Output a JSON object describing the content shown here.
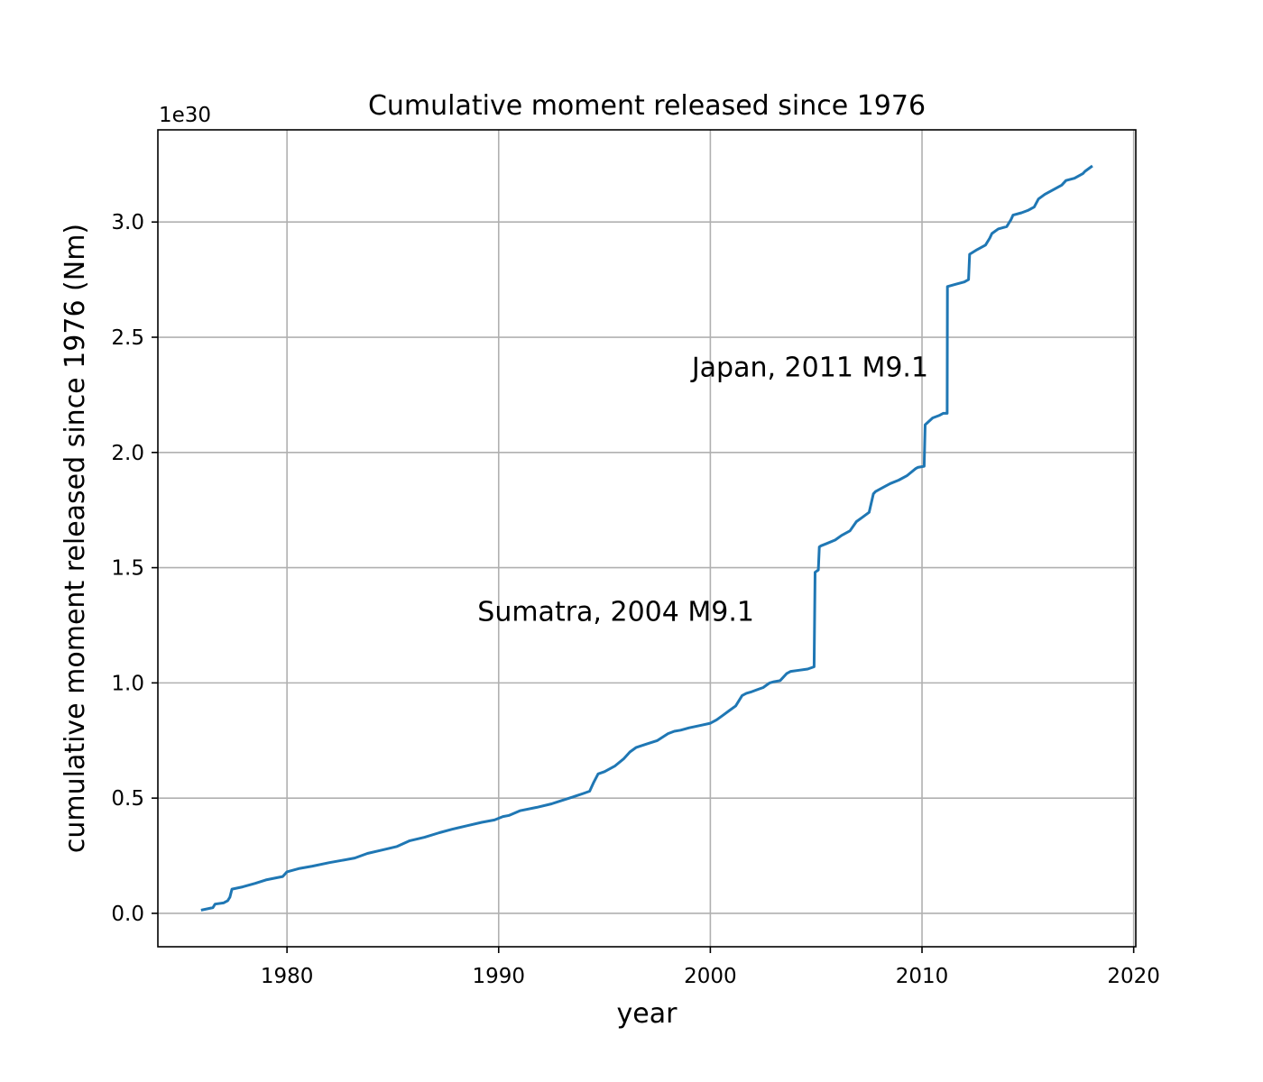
{
  "chart_data": {
    "type": "line",
    "title": "Cumulative moment released since 1976",
    "xlabel": "year",
    "ylabel": "cumulative moment released since 1976 (Nm)",
    "y_scale_label": "1e30",
    "y_scale_factor": 1e+30,
    "xlim": [
      1973.9,
      2020.1
    ],
    "ylim": [
      -0.145,
      3.4
    ],
    "xticks": [
      1980,
      1990,
      2000,
      2010,
      2020
    ],
    "yticks": [
      0.0,
      0.5,
      1.0,
      1.5,
      2.0,
      2.5,
      3.0
    ],
    "xtick_labels": [
      "1980",
      "1990",
      "2000",
      "2010",
      "2020"
    ],
    "ytick_labels": [
      "0.0",
      "0.5",
      "1.0",
      "1.5",
      "2.0",
      "2.5",
      "3.0"
    ],
    "grid": true,
    "legend": "none",
    "colors": {
      "series": "#1f77b4",
      "grid": "#b0b0b0",
      "frame": "#000000"
    },
    "series": [
      {
        "color": "#1f77b4",
        "x": [
          1976.0,
          1976.5,
          1976.6,
          1977.0,
          1977.2,
          1977.3,
          1977.4,
          1977.9,
          1978.5,
          1979.0,
          1979.8,
          1980.0,
          1980.6,
          1981.2,
          1982.0,
          1982.6,
          1983.2,
          1983.8,
          1984.5,
          1985.2,
          1985.8,
          1986.5,
          1987.2,
          1987.8,
          1988.5,
          1989.2,
          1989.8,
          1990.2,
          1990.5,
          1991.0,
          1991.8,
          1992.5,
          1993.0,
          1993.5,
          1994.0,
          1994.3,
          1994.5,
          1994.7,
          1995.0,
          1995.5,
          1995.9,
          1996.2,
          1996.5,
          1997.0,
          1997.5,
          1998.0,
          1998.3,
          1998.6,
          1999.0,
          1999.5,
          2000.0,
          2000.3,
          2000.6,
          2000.9,
          2001.2,
          2001.5,
          2001.7,
          2001.9,
          2002.2,
          2002.5,
          2002.8,
          2003.0,
          2003.3,
          2003.6,
          2003.8,
          2004.2,
          2004.6,
          2004.9,
          2004.95,
          2005.1,
          2005.15,
          2005.23,
          2005.5,
          2005.9,
          2006.2,
          2006.6,
          2006.9,
          2007.2,
          2007.5,
          2007.7,
          2007.8,
          2008.2,
          2008.5,
          2008.9,
          2009.3,
          2009.7,
          2009.8,
          2010.1,
          2010.15,
          2010.5,
          2010.8,
          2011.0,
          2011.05,
          2011.19,
          2011.2,
          2011.6,
          2012.0,
          2012.2,
          2012.25,
          2012.6,
          2013.0,
          2013.2,
          2013.3,
          2013.6,
          2014.0,
          2014.2,
          2014.3,
          2014.7,
          2015.0,
          2015.3,
          2015.5,
          2015.8,
          2016.2,
          2016.6,
          2016.8,
          2017.2,
          2017.6,
          2017.7,
          2018.0
        ],
        "y": [
          0.015,
          0.025,
          0.04,
          0.045,
          0.055,
          0.07,
          0.105,
          0.115,
          0.13,
          0.145,
          0.16,
          0.18,
          0.195,
          0.205,
          0.22,
          0.23,
          0.24,
          0.26,
          0.275,
          0.29,
          0.315,
          0.33,
          0.35,
          0.365,
          0.38,
          0.395,
          0.405,
          0.42,
          0.425,
          0.445,
          0.46,
          0.475,
          0.49,
          0.505,
          0.52,
          0.53,
          0.57,
          0.605,
          0.615,
          0.64,
          0.67,
          0.7,
          0.72,
          0.735,
          0.75,
          0.78,
          0.79,
          0.795,
          0.805,
          0.815,
          0.825,
          0.84,
          0.86,
          0.88,
          0.9,
          0.945,
          0.955,
          0.96,
          0.97,
          0.98,
          1.0,
          1.005,
          1.01,
          1.04,
          1.05,
          1.055,
          1.06,
          1.07,
          1.48,
          1.49,
          1.59,
          1.595,
          1.605,
          1.62,
          1.64,
          1.66,
          1.7,
          1.72,
          1.74,
          1.82,
          1.83,
          1.85,
          1.865,
          1.88,
          1.9,
          1.93,
          1.935,
          1.94,
          2.12,
          2.15,
          2.16,
          2.17,
          2.17,
          2.17,
          2.72,
          2.73,
          2.74,
          2.75,
          2.86,
          2.88,
          2.9,
          2.93,
          2.95,
          2.97,
          2.98,
          3.01,
          3.03,
          3.04,
          3.05,
          3.065,
          3.1,
          3.12,
          3.14,
          3.16,
          3.18,
          3.19,
          3.21,
          3.22,
          3.24
        ]
      }
    ],
    "annotations": [
      {
        "text": "Sumatra, 2004 M9.1",
        "x": 1989.0,
        "y": 1.27,
        "anchor": "start"
      },
      {
        "text": "Japan, 2011 M9.1",
        "x": 2010.3,
        "y": 2.33,
        "anchor": "end"
      }
    ]
  }
}
